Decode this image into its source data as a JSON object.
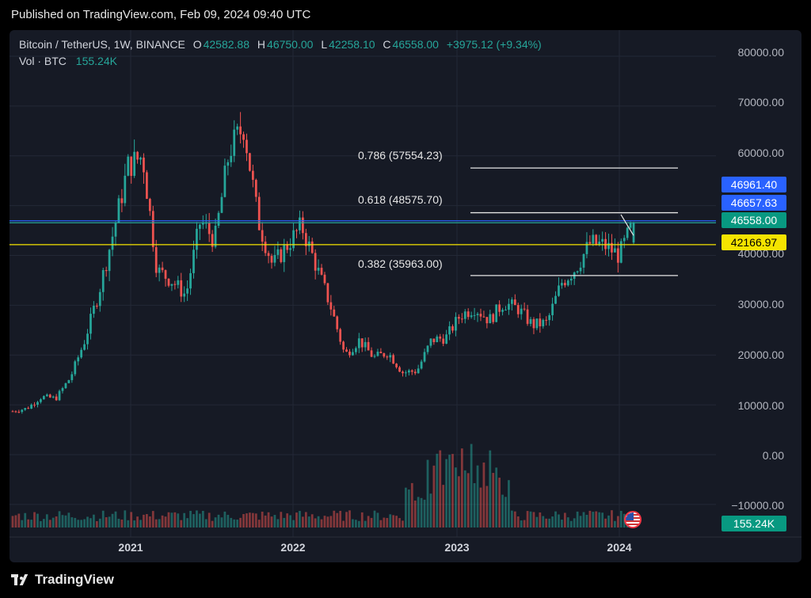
{
  "header": {
    "published": "Published on TradingView.com, Feb 09, 2024 09:40 UTC"
  },
  "legend": {
    "symbol": "Bitcoin / TetherUS, 1W, BINANCE",
    "o_label": "O",
    "o_value": "42582.88",
    "h_label": "H",
    "h_value": "46750.00",
    "l_label": "L",
    "l_value": "42258.10",
    "c_label": "C",
    "c_value": "46558.00",
    "change": "+3975.12 (+9.34%)",
    "vol_label": "Vol · BTC",
    "vol_value": "155.24K"
  },
  "price_tags": {
    "fib_786": "46961.40",
    "fib_618": "46657.63",
    "last": "46558.00",
    "yellow": "42166.97",
    "volume": "155.24K"
  },
  "fib_labels": {
    "l786": "0.786 (57554.23)",
    "l618": "0.618 (48575.70)",
    "l382": "0.382 (35963.00)"
  },
  "footer": {
    "brand": "TradingView"
  },
  "colors": {
    "up": "#26a69a",
    "down": "#ef5350",
    "blue": "#2962ff",
    "yellow": "#f5e400",
    "bg": "#161a25"
  },
  "chart_data": {
    "type": "candlestick",
    "title": "Bitcoin / TetherUS, 1W, BINANCE",
    "y_ticks": [
      "80000.00",
      "70000.00",
      "60000.00",
      "50000.00",
      "40000.00",
      "30000.00",
      "20000.00",
      "10000.00",
      "0.00",
      "−10000.00"
    ],
    "x_ticks": [
      "2021",
      "2022",
      "2023",
      "2024"
    ],
    "ylim": [
      -11000,
      83000
    ],
    "fib_levels": [
      {
        "ratio": 0.786,
        "price": 57554.23
      },
      {
        "ratio": 0.618,
        "price": 48575.7
      },
      {
        "ratio": 0.382,
        "price": 35963.0
      }
    ],
    "horizontal_lines": [
      {
        "price": 46961.4,
        "color": "blue"
      },
      {
        "price": 46558.0,
        "color": "green"
      },
      {
        "price": 42166.97,
        "color": "yellow"
      }
    ],
    "price_path": [
      [
        "2020-05",
        8700
      ],
      [
        "2020-07",
        9300
      ],
      [
        "2020-08",
        11600
      ],
      [
        "2020-10",
        11300
      ],
      [
        "2020-11",
        15500
      ],
      [
        "2020-12",
        23000
      ],
      [
        "2021-01",
        33000
      ],
      [
        "2021-02",
        45000
      ],
      [
        "2021-03",
        58000
      ],
      [
        "2021-04",
        60000
      ],
      [
        "2021-05",
        37000
      ],
      [
        "2021-06",
        35000
      ],
      [
        "2021-07",
        32000
      ],
      [
        "2021-08",
        47000
      ],
      [
        "2021-09",
        43000
      ],
      [
        "2021-10",
        61000
      ],
      [
        "2021-11",
        66000
      ],
      [
        "2021-12",
        47000
      ],
      [
        "2022-01",
        38000
      ],
      [
        "2022-02",
        42000
      ],
      [
        "2022-03",
        46000
      ],
      [
        "2022-04",
        38000
      ],
      [
        "2022-05",
        30000
      ],
      [
        "2022-06",
        20000
      ],
      [
        "2022-08",
        23000
      ],
      [
        "2022-09",
        19500
      ],
      [
        "2022-10",
        20500
      ],
      [
        "2022-11",
        16500
      ],
      [
        "2022-12",
        16800
      ],
      [
        "2023-01",
        23000
      ],
      [
        "2023-02",
        23500
      ],
      [
        "2023-03",
        28000
      ],
      [
        "2023-04",
        29500
      ],
      [
        "2023-05",
        27000
      ],
      [
        "2023-06",
        30500
      ],
      [
        "2023-07",
        29300
      ],
      [
        "2023-08",
        26000
      ],
      [
        "2023-09",
        26500
      ],
      [
        "2023-10",
        34500
      ],
      [
        "2023-11",
        37500
      ],
      [
        "2023-12",
        42500
      ],
      [
        "2024-01",
        42000
      ],
      [
        "2024-01b",
        40000
      ],
      [
        "2024-02",
        46558
      ]
    ]
  }
}
